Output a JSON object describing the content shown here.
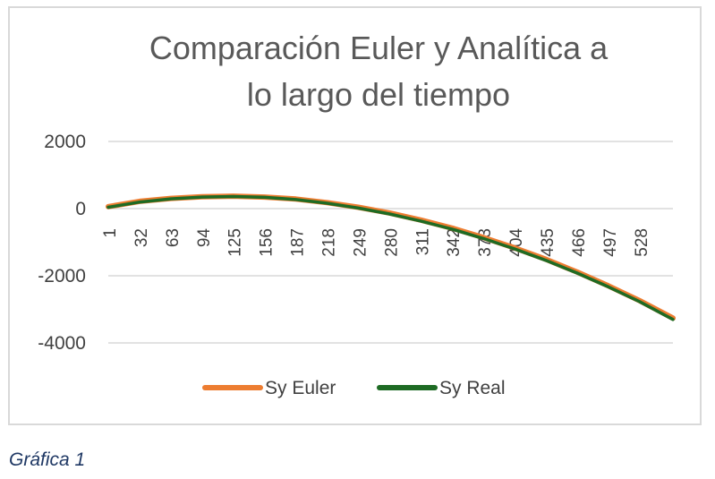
{
  "caption": "Gráfica 1",
  "chart_data": {
    "type": "line",
    "title": "Comparación Euler y Analítica a lo largo del tiempo",
    "title_lines": [
      "Comparación Euler y Analítica a",
      "lo largo del tiempo"
    ],
    "xlabel": "",
    "ylabel": "",
    "ylim": [
      -4000,
      2000
    ],
    "yticks": [
      2000,
      0,
      -2000,
      -4000
    ],
    "xlim": [
      1,
      561
    ],
    "xticks": [
      1,
      32,
      63,
      94,
      125,
      156,
      187,
      218,
      249,
      280,
      311,
      342,
      373,
      404,
      435,
      466,
      497,
      528
    ],
    "grid": true,
    "legend_position": "bottom",
    "x": [
      1,
      32,
      63,
      94,
      125,
      156,
      187,
      218,
      249,
      280,
      311,
      342,
      373,
      404,
      435,
      466,
      497,
      528,
      561
    ],
    "series": [
      {
        "name": "Sy Euler",
        "color": "#ED7D31",
        "values": [
          60,
          215,
          305,
          355,
          370,
          345,
          285,
          180,
          40,
          -130,
          -340,
          -580,
          -860,
          -1170,
          -1510,
          -1890,
          -2300,
          -2740,
          -3260
        ]
      },
      {
        "name": "Sy Real",
        "color": "#1E6B24",
        "values": [
          40,
          195,
          290,
          345,
          360,
          335,
          270,
          160,
          15,
          -160,
          -370,
          -610,
          -890,
          -1200,
          -1540,
          -1920,
          -2330,
          -2770,
          -3300
        ]
      }
    ]
  }
}
